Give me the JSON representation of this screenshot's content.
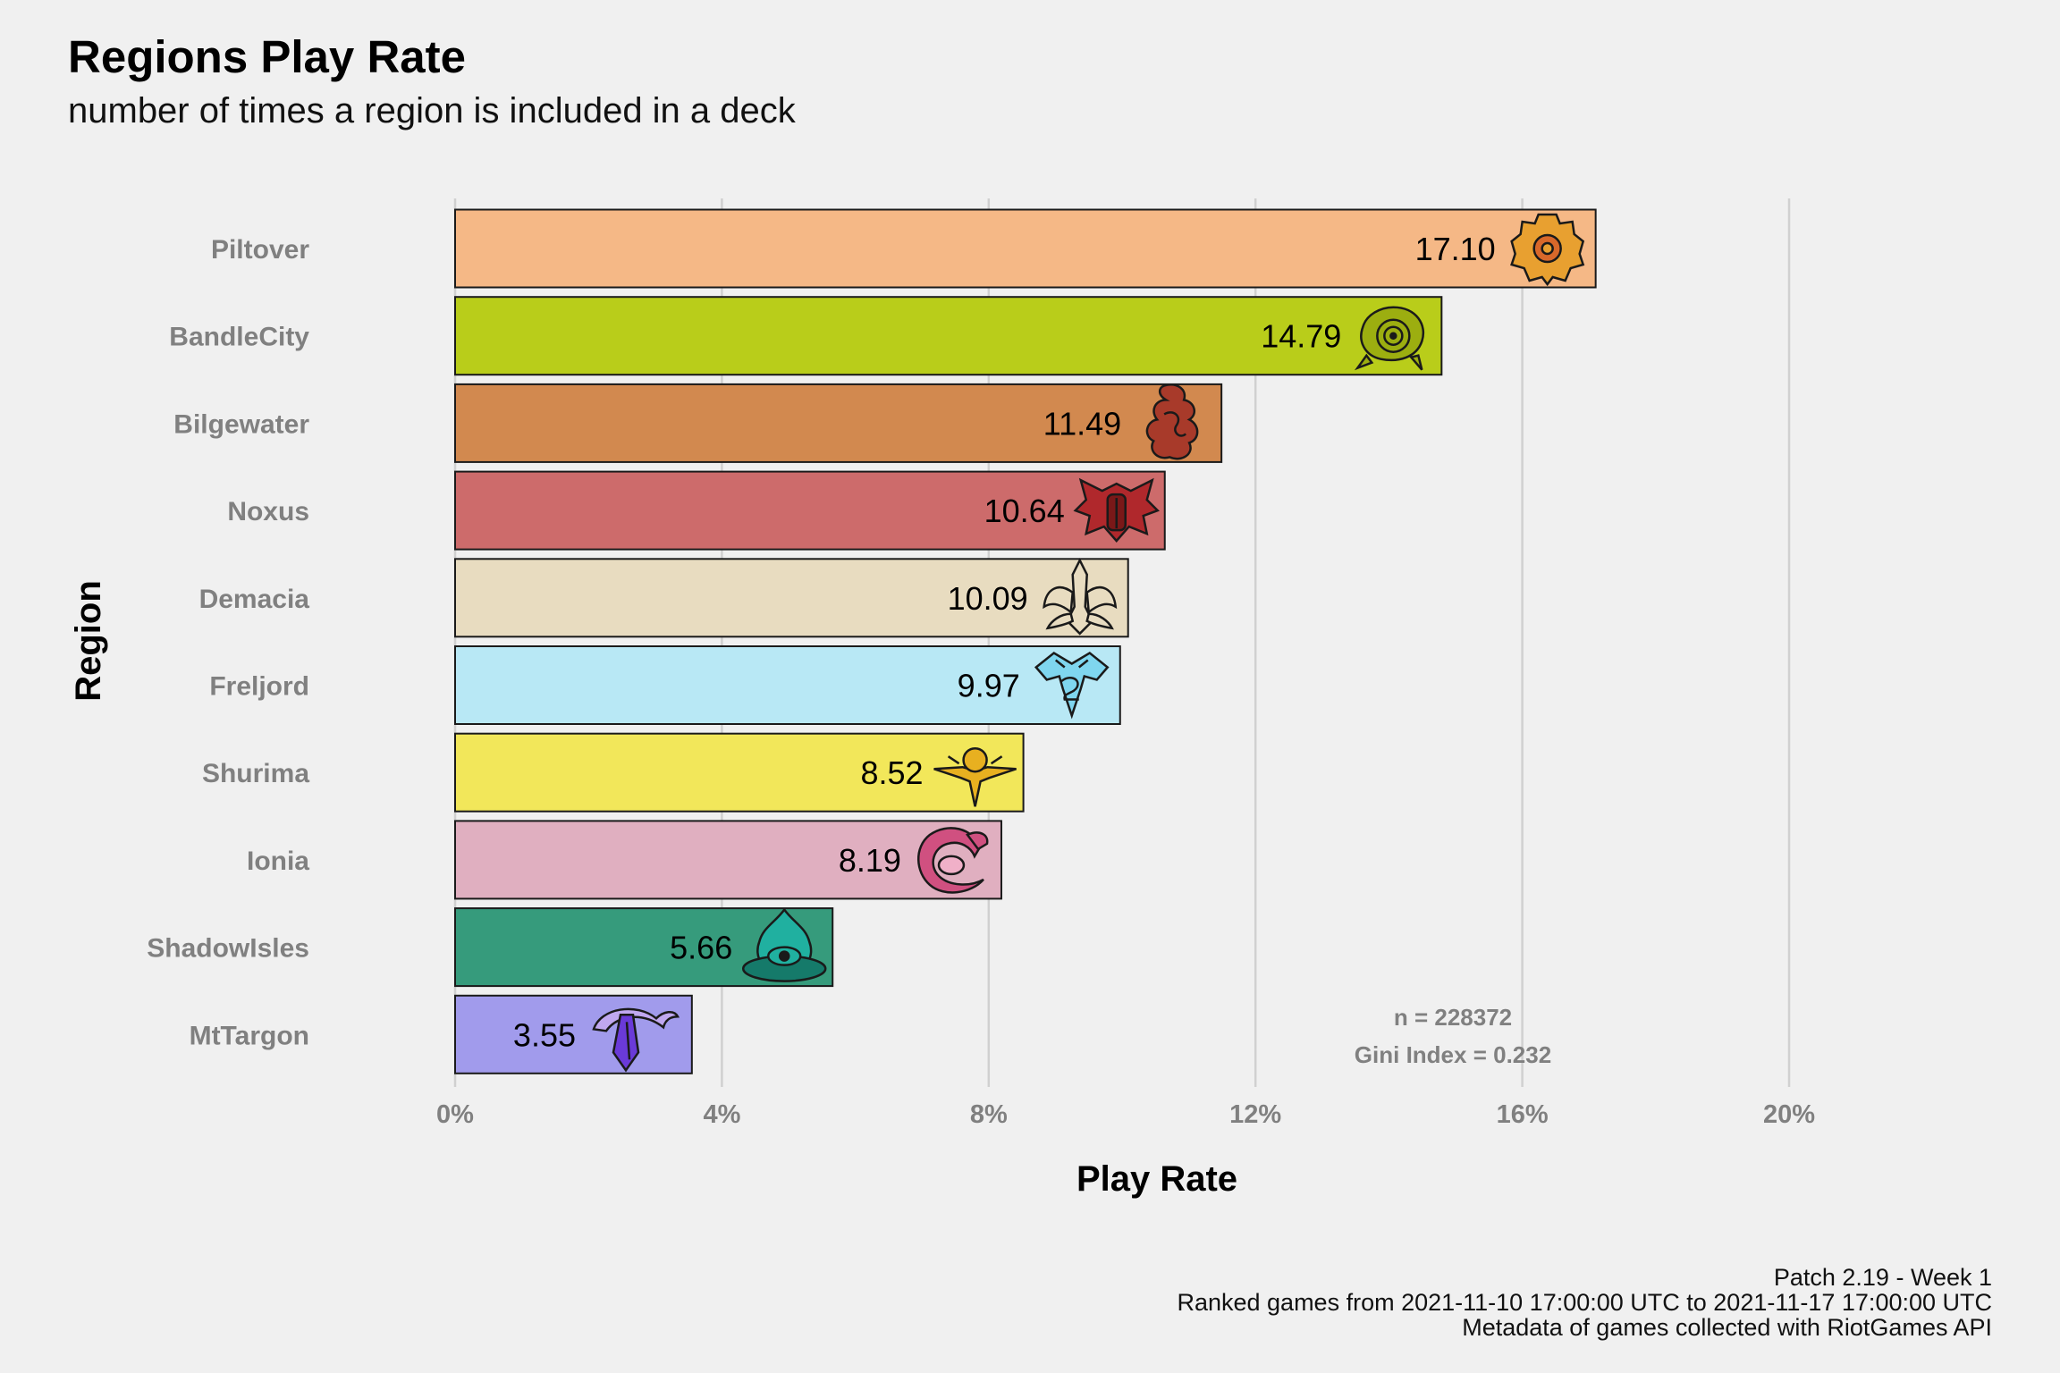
{
  "title": "Regions Play Rate",
  "subtitle": "number of times a region is included in a deck",
  "caption": [
    "Patch 2.19 - Week 1",
    "Ranked games from 2021-11-10 17:00:00 UTC to 2021-11-17 17:00:00 UTC",
    "Metadata of games collected with RiotGames API"
  ],
  "annotation": [
    "n = 228372",
    "Gini Index = 0.232"
  ],
  "chart_data": {
    "type": "bar",
    "orientation": "horizontal",
    "xlabel": "Play Rate",
    "ylabel": "Region",
    "xlim": [
      0,
      20
    ],
    "xticks": [
      0,
      4,
      8,
      12,
      16,
      20
    ],
    "xtick_labels": [
      "0%",
      "4%",
      "8%",
      "12%",
      "16%",
      "20%"
    ],
    "grid": "vertical major gridlines",
    "categories": [
      "Piltover",
      "BandleCity",
      "Bilgewater",
      "Noxus",
      "Demacia",
      "Freljord",
      "Shurima",
      "Ionia",
      "ShadowIsles",
      "MtTargon"
    ],
    "values": [
      17.1,
      14.79,
      11.49,
      10.64,
      10.09,
      9.97,
      8.52,
      8.19,
      5.66,
      3.55
    ],
    "value_labels": [
      "17.10",
      "14.79",
      "11.49",
      "10.64",
      "10.09",
      "9.97",
      "8.52",
      "8.19",
      "5.66",
      "3.55"
    ],
    "colors": [
      "#f5b886",
      "#b9cd1a",
      "#d2894f",
      "#cd6b6b",
      "#e8dcc0",
      "#b8e8f5",
      "#f2e75a",
      "#e0afc0",
      "#369b7c",
      "#a19bec"
    ],
    "icon_colors": [
      "#e8a030",
      "#9cae10",
      "#a83a2a",
      "#b0282c",
      "#e8dcc0",
      "#7fd6ef",
      "#e8b020",
      "#d05080",
      "#20b0a0",
      "#6a3ad8"
    ],
    "icons": [
      "piltover-icon",
      "bandlecity-icon",
      "bilgewater-icon",
      "noxus-icon",
      "demacia-icon",
      "freljord-icon",
      "shurima-icon",
      "ionia-icon",
      "shadowisles-icon",
      "mttargon-icon"
    ]
  }
}
